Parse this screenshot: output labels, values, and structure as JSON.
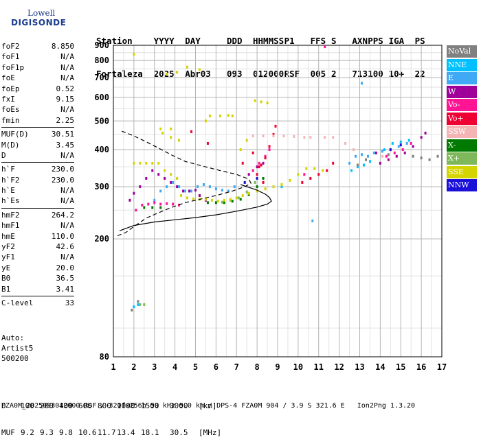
{
  "logo": {
    "line1": "Lowell",
    "line2": "DIGISONDE"
  },
  "header": {
    "labels": [
      "Station",
      "YYYY",
      "DAY",
      "DDD",
      "HHMMSS",
      "P1",
      "FFS",
      "S",
      "AXN",
      "PPS",
      "IGA",
      "PS"
    ],
    "values": [
      "Fortaleza",
      "2025",
      "Abr03",
      "093",
      "012000",
      "RSF",
      "005",
      "2",
      "713",
      "100",
      "10+",
      "22"
    ]
  },
  "params": [
    {
      "group": [
        [
          "foF2",
          "8.850"
        ],
        [
          "foF1",
          "N/A"
        ],
        [
          "foF1p",
          "N/A"
        ],
        [
          "foE",
          "N/A"
        ],
        [
          "foEp",
          "0.52"
        ],
        [
          "fxI",
          "9.15"
        ],
        [
          "foEs",
          "N/A"
        ],
        [
          "fmin",
          "2.25"
        ]
      ]
    },
    {
      "group": [
        [
          "MUF(D)",
          "30.51"
        ],
        [
          "M(D)",
          "3.45"
        ],
        [
          "D",
          "N/A"
        ]
      ]
    },
    {
      "group": [
        [
          "h`F",
          "230.0"
        ],
        [
          "h`F2",
          "230.0"
        ],
        [
          "h`E",
          "N/A"
        ],
        [
          "h`Es",
          "N/A"
        ]
      ]
    },
    {
      "group": [
        [
          "hmF2",
          "264.2"
        ],
        [
          "hmF1",
          "N/A"
        ],
        [
          "hmE",
          "110.0"
        ],
        [
          "yF2",
          "42.6"
        ],
        [
          "yF1",
          "N/A"
        ],
        [
          "yE",
          "20.0"
        ],
        [
          "B0",
          "36.5"
        ],
        [
          "B1",
          "3.41"
        ]
      ]
    },
    {
      "group": [
        [
          "C-level",
          "33"
        ]
      ]
    }
  ],
  "auto": {
    "line1": "Auto:",
    "line2": "Artist5",
    "line3": "500200"
  },
  "legend": [
    {
      "label": "NoVal",
      "color": "#808080"
    },
    {
      "label": "NNE",
      "color": "#00c0ff"
    },
    {
      "label": "E",
      "color": "#3fa9f5"
    },
    {
      "label": "W",
      "color": "#a0009a"
    },
    {
      "label": "Vo-",
      "color": "#ff1493"
    },
    {
      "label": "Vo+",
      "color": "#ee0033"
    },
    {
      "label": "SSW",
      "color": "#f4b4b4"
    },
    {
      "label": "X-",
      "color": "#007a00"
    },
    {
      "label": "X+",
      "color": "#7fb85a"
    },
    {
      "label": "SSE",
      "color": "#d4d400"
    },
    {
      "label": "NNW",
      "color": "#1a10d8"
    }
  ],
  "dtable": {
    "d_label": "D",
    "d_values": [
      "100",
      "200",
      "400",
      "600",
      "800",
      "1000",
      "1500",
      "3000",
      "[km]"
    ],
    "muf_label": "MUF",
    "muf_values": [
      "9.2",
      "9.3",
      "9.8",
      "10.6",
      "11.7",
      "13.4",
      "18.1",
      "30.5",
      "[MHz]"
    ]
  },
  "footer": "FZA0M_2025093012000.RSF / 320fx256h 50 kHz 5.0 km / DPS-4 FZA0M 904 / 3.9 S 321.6 E   Ion2Png 1.3.20",
  "chart_data": {
    "type": "scatter",
    "xlabel": "",
    "ylabel": "",
    "xlim": [
      1,
      17
    ],
    "ylim": [
      80,
      900
    ],
    "x_ticks": [
      1,
      2,
      3,
      4,
      5,
      6,
      7,
      8,
      9,
      10,
      11,
      12,
      13,
      14,
      15,
      16,
      17
    ],
    "y_ticks": [
      80,
      200,
      300,
      400,
      500,
      600,
      700,
      800,
      900
    ],
    "y_scale": "log",
    "grid": true,
    "legend": "right-outside",
    "series": [
      {
        "color": "#a0009a",
        "points": [
          [
            1.8,
            270
          ],
          [
            2.0,
            285
          ],
          [
            2.3,
            300
          ],
          [
            2.6,
            320
          ],
          [
            2.9,
            340
          ],
          [
            3.2,
            330
          ],
          [
            3.5,
            320
          ],
          [
            3.8,
            310
          ],
          [
            4.1,
            300
          ],
          [
            4.4,
            290
          ],
          [
            4.7,
            290
          ],
          [
            5.0,
            292
          ],
          [
            5.2,
            280
          ],
          [
            5.5,
            270
          ],
          [
            7.6,
            330
          ],
          [
            8.0,
            350
          ],
          [
            8.3,
            360
          ],
          [
            14.0,
            360
          ],
          [
            14.4,
            370
          ],
          [
            14.8,
            380
          ],
          [
            15.2,
            390
          ],
          [
            15.6,
            410
          ],
          [
            16.0,
            440
          ],
          [
            16.2,
            455
          ],
          [
            13.8,
            390
          ]
        ]
      },
      {
        "color": "#3fa9f5",
        "points": [
          [
            3.0,
            270
          ],
          [
            3.3,
            290
          ],
          [
            3.6,
            300
          ],
          [
            3.9,
            310
          ],
          [
            4.2,
            300
          ],
          [
            4.5,
            290
          ],
          [
            4.8,
            290
          ],
          [
            5.1,
            300
          ],
          [
            5.4,
            305
          ],
          [
            5.7,
            300
          ],
          [
            6.0,
            295
          ],
          [
            6.3,
            292
          ],
          [
            6.6,
            290
          ],
          [
            6.9,
            300
          ],
          [
            12.5,
            360
          ],
          [
            12.8,
            380
          ],
          [
            13.1,
            385
          ],
          [
            13.4,
            380
          ],
          [
            13.7,
            390
          ],
          [
            14.1,
            395
          ],
          [
            14.5,
            400
          ],
          [
            14.9,
            410
          ],
          [
            15.3,
            420
          ],
          [
            10.7,
            230
          ],
          [
            13.1,
            670
          ]
        ]
      },
      {
        "color": "#00c0ff",
        "points": [
          [
            12.6,
            340
          ],
          [
            12.9,
            350
          ],
          [
            13.2,
            355
          ],
          [
            13.5,
            365
          ],
          [
            14.2,
            400
          ],
          [
            14.6,
            420
          ],
          [
            15.0,
            425
          ],
          [
            15.4,
            430
          ],
          [
            9.2,
            300
          ],
          [
            2.0,
            118
          ],
          [
            2.2,
            120
          ]
        ]
      },
      {
        "color": "#ff1493",
        "points": [
          [
            2.1,
            250
          ],
          [
            2.4,
            260
          ],
          [
            2.7,
            262
          ],
          [
            3.0,
            265
          ],
          [
            3.3,
            262
          ],
          [
            3.6,
            263
          ],
          [
            3.9,
            262
          ],
          [
            4.2,
            260
          ],
          [
            7.8,
            340
          ],
          [
            8.1,
            360
          ],
          [
            8.4,
            380
          ],
          [
            8.6,
            400
          ],
          [
            14.3,
            380
          ],
          [
            14.7,
            390
          ],
          [
            15.1,
            400
          ],
          [
            15.5,
            420
          ],
          [
            10.3,
            330
          ],
          [
            11.3,
            890
          ]
        ]
      },
      {
        "color": "#ee0033",
        "points": [
          [
            8.0,
            330
          ],
          [
            8.2,
            355
          ],
          [
            8.4,
            375
          ],
          [
            8.6,
            410
          ],
          [
            8.8,
            450
          ],
          [
            8.9,
            480
          ],
          [
            10.2,
            310
          ],
          [
            10.6,
            320
          ],
          [
            11.0,
            330
          ],
          [
            11.4,
            340
          ],
          [
            11.7,
            360
          ],
          [
            4.8,
            460
          ],
          [
            5.6,
            420
          ],
          [
            7.3,
            360
          ],
          [
            7.8,
            390
          ],
          [
            8.1,
            350
          ],
          [
            8.3,
            310
          ]
        ]
      },
      {
        "color": "#f4b4b4",
        "points": [
          [
            7.8,
            445
          ],
          [
            8.3,
            445
          ],
          [
            8.8,
            445
          ],
          [
            9.3,
            445
          ],
          [
            9.8,
            443
          ],
          [
            10.3,
            440
          ],
          [
            10.6,
            440
          ],
          [
            11.3,
            440
          ],
          [
            11.7,
            440
          ],
          [
            12.3,
            420
          ],
          [
            12.7,
            400
          ],
          [
            14.1,
            380
          ]
        ]
      },
      {
        "color": "#007a00",
        "points": [
          [
            5.6,
            265
          ],
          [
            6.0,
            265
          ],
          [
            6.4,
            265
          ],
          [
            6.8,
            268
          ],
          [
            7.2,
            272
          ],
          [
            7.6,
            282
          ],
          [
            8.0,
            300
          ],
          [
            8.3,
            320
          ],
          [
            2.5,
            255
          ],
          [
            2.9,
            255
          ],
          [
            3.3,
            255
          ]
        ]
      },
      {
        "color": "#7fb85a",
        "points": [
          [
            2.3,
            120
          ],
          [
            2.5,
            120
          ],
          [
            6.3,
            266
          ],
          [
            6.7,
            270
          ],
          [
            7.1,
            275
          ],
          [
            7.5,
            288
          ],
          [
            7.9,
            310
          ]
        ]
      },
      {
        "color": "#d4d400",
        "points": [
          [
            2.0,
            360
          ],
          [
            2.3,
            360
          ],
          [
            2.6,
            360
          ],
          [
            2.9,
            360
          ],
          [
            3.2,
            360
          ],
          [
            3.5,
            340
          ],
          [
            3.8,
            330
          ],
          [
            4.1,
            320
          ],
          [
            4.3,
            280
          ],
          [
            4.6,
            275
          ],
          [
            4.9,
            273
          ],
          [
            5.2,
            272
          ],
          [
            5.5,
            272
          ],
          [
            5.8,
            270
          ],
          [
            6.1,
            268
          ],
          [
            6.4,
            270
          ],
          [
            6.7,
            272
          ],
          [
            7.0,
            275
          ],
          [
            7.3,
            280
          ],
          [
            7.6,
            285
          ],
          [
            8.0,
            290
          ],
          [
            8.4,
            295
          ],
          [
            8.8,
            300
          ],
          [
            9.2,
            305
          ],
          [
            9.6,
            315
          ],
          [
            10.0,
            330
          ],
          [
            10.4,
            345
          ],
          [
            10.8,
            345
          ],
          [
            11.2,
            340
          ],
          [
            3.6,
            720
          ],
          [
            4.1,
            730
          ],
          [
            4.6,
            760
          ],
          [
            5.2,
            745
          ],
          [
            5.7,
            520
          ],
          [
            6.2,
            520
          ],
          [
            6.6,
            522
          ],
          [
            6.8,
            520
          ],
          [
            3.3,
            470
          ],
          [
            3.8,
            440
          ],
          [
            4.2,
            430
          ],
          [
            5.5,
            500
          ],
          [
            2.0,
            840
          ],
          [
            7.9,
            585
          ],
          [
            8.2,
            580
          ],
          [
            8.5,
            575
          ],
          [
            3.8,
            470
          ],
          [
            3.4,
            455
          ],
          [
            7.5,
            430
          ],
          [
            7.2,
            400
          ]
        ]
      },
      {
        "color": "#808080",
        "points": [
          [
            12.9,
            355
          ],
          [
            13.3,
            370
          ],
          [
            14.4,
            385
          ],
          [
            15.6,
            380
          ],
          [
            16.0,
            375
          ],
          [
            16.4,
            370
          ],
          [
            16.8,
            380
          ],
          [
            1.9,
            115
          ],
          [
            2.2,
            123
          ]
        ]
      },
      {
        "color": "#1a10d8",
        "points": [
          [
            14.5,
            400
          ],
          [
            15.0,
            415
          ],
          [
            7.4,
            310
          ],
          [
            8.0,
            320
          ]
        ]
      }
    ],
    "lines": [
      {
        "style": "solid",
        "points": [
          [
            1.3,
            213
          ],
          [
            2.0,
            222
          ],
          [
            3.0,
            228
          ],
          [
            4.0,
            232
          ],
          [
            5.0,
            236
          ],
          [
            6.0,
            241
          ],
          [
            7.0,
            248
          ],
          [
            8.0,
            256
          ],
          [
            8.5,
            262
          ],
          [
            8.7,
            268
          ],
          [
            8.6,
            276
          ],
          [
            8.4,
            283
          ],
          [
            8.0,
            292
          ],
          [
            7.5,
            300
          ],
          [
            7.2,
            305
          ]
        ]
      },
      {
        "style": "dashed",
        "points": [
          [
            1.2,
            205
          ],
          [
            1.6,
            210
          ],
          [
            2.0,
            220
          ],
          [
            2.6,
            235
          ],
          [
            3.2,
            245
          ],
          [
            3.8,
            255
          ],
          [
            4.5,
            265
          ],
          [
            5.2,
            272
          ],
          [
            6.0,
            280
          ],
          [
            6.8,
            290
          ],
          [
            7.4,
            300
          ],
          [
            7.7,
            308
          ],
          [
            7.6,
            318
          ],
          [
            7.0,
            330
          ],
          [
            6.2,
            340
          ],
          [
            5.5,
            350
          ],
          [
            4.5,
            365
          ],
          [
            3.8,
            385
          ],
          [
            3.2,
            405
          ],
          [
            2.6,
            425
          ],
          [
            2.0,
            445
          ],
          [
            1.3,
            465
          ]
        ]
      }
    ]
  }
}
